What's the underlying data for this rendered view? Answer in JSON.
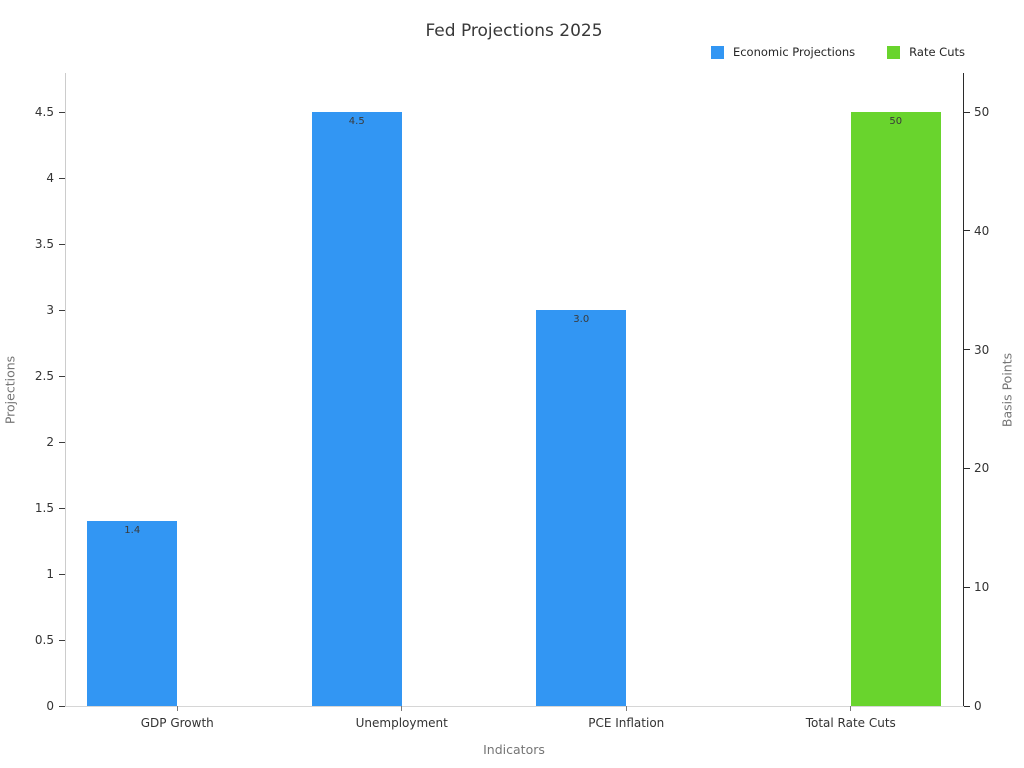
{
  "chart_data": {
    "type": "bar",
    "title": "Fed Projections 2025",
    "xlabel": "Indicators",
    "categories": [
      "GDP Growth",
      "Unemployment",
      "PCE Inflation",
      "Total Rate Cuts"
    ],
    "series": [
      {
        "name": "Economic Projections",
        "axis": "left",
        "color": "#3296f3",
        "values": [
          1.4,
          4.5,
          3.0,
          null
        ],
        "bar_labels": [
          "1.4",
          "4.5",
          "3.0",
          null
        ]
      },
      {
        "name": "Rate Cuts",
        "axis": "right",
        "color": "#69d42d",
        "values": [
          null,
          null,
          null,
          50
        ],
        "bar_labels": [
          null,
          null,
          null,
          "50"
        ]
      }
    ],
    "axes": {
      "left": {
        "label": "Projections",
        "ticks": [
          0,
          0.5,
          1,
          1.5,
          2,
          2.5,
          3,
          3.5,
          4,
          4.5
        ],
        "tick_labels": [
          "0",
          "0.5",
          "1",
          "1.5",
          "2",
          "2.5",
          "3",
          "3.5",
          "4",
          "4.5"
        ],
        "top_tick_value": 4.5
      },
      "right": {
        "label": "Basis Points",
        "ticks": [
          0,
          10,
          20,
          30,
          40,
          50
        ],
        "tick_labels": [
          "0",
          "10",
          "20",
          "30",
          "40",
          "50"
        ],
        "top_tick_value": 50
      }
    },
    "legend": {
      "position": "top-right",
      "entries": [
        "Economic Projections",
        "Rate Cuts"
      ]
    },
    "grid": false,
    "background_color": "#ffffff"
  }
}
